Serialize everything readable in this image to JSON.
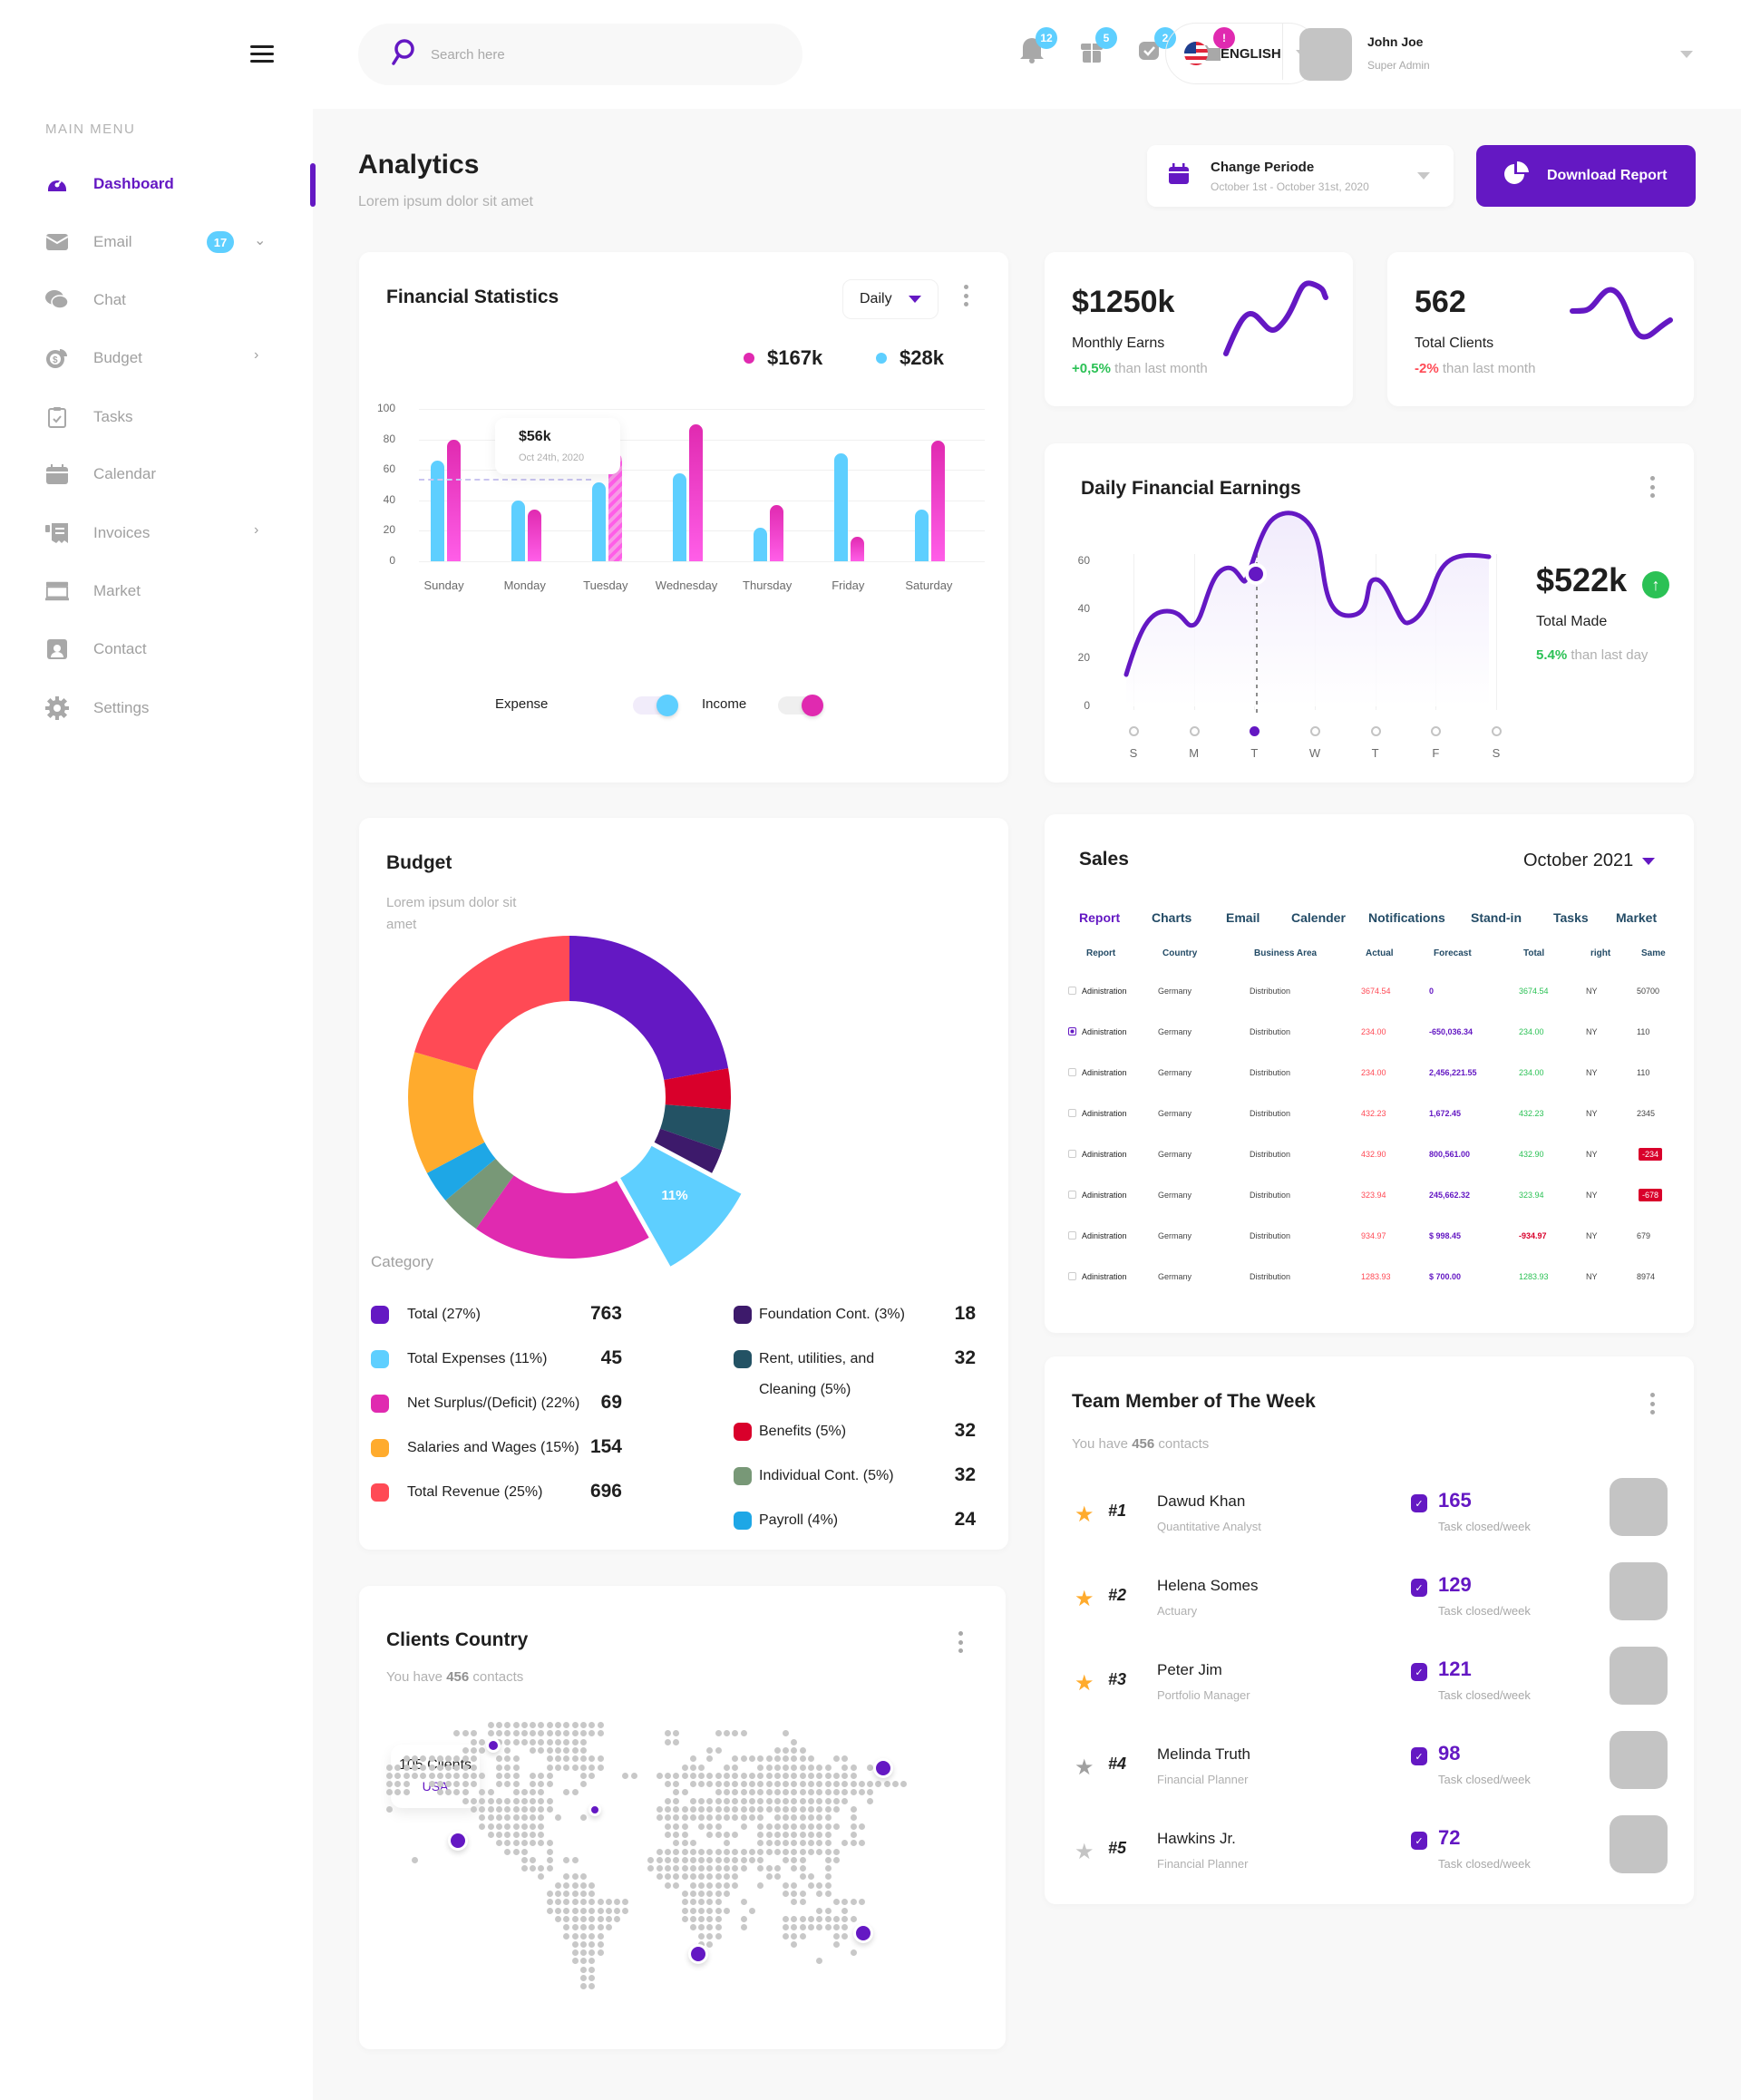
{
  "sidebar": {
    "menu_title": "MAIN MENU",
    "items": [
      {
        "label": "Dashboard",
        "icon": "dashboard-icon",
        "active": true
      },
      {
        "label": "Email",
        "icon": "envelope-icon",
        "badge": "17",
        "chevron": "down"
      },
      {
        "label": "Chat",
        "icon": "chat-icon"
      },
      {
        "label": "Budget",
        "icon": "budget-icon",
        "chevron": "right"
      },
      {
        "label": "Tasks",
        "icon": "clipboard-icon"
      },
      {
        "label": "Calendar",
        "icon": "calendar-icon"
      },
      {
        "label": "Invoices",
        "icon": "receipt-icon",
        "chevron": "right"
      },
      {
        "label": "Market",
        "icon": "store-icon"
      },
      {
        "label": "Contact",
        "icon": "contact-icon"
      },
      {
        "label": "Settings",
        "icon": "gear-icon"
      }
    ]
  },
  "header": {
    "search_placeholder": "Search here",
    "notifications": [
      {
        "icon": "bell-icon",
        "badge": "12",
        "color": "#5ecfff"
      },
      {
        "icon": "gift-icon",
        "badge": "5",
        "color": "#5ecfff"
      },
      {
        "icon": "chat-check-icon",
        "badge": "2",
        "color": "#5ecfff"
      },
      {
        "icon": "folder-icon",
        "badge": "!",
        "color": "#e02ab0"
      }
    ],
    "language": "ENGLISH",
    "user": {
      "name": "John Joe",
      "role": "Super Admin"
    }
  },
  "page": {
    "title": "Analytics",
    "subtitle": "Lorem ipsum  dolor sit amet",
    "period": {
      "label": "Change Periode",
      "range": "October 1st - October 31st, 2020"
    },
    "download_label": "Download Report"
  },
  "financial_statistics": {
    "title": "Financial Statistics",
    "filter": "Daily",
    "totals": [
      {
        "value": "$167k",
        "color": "#e02ab0"
      },
      {
        "value": "$28k",
        "color": "#5ecfff"
      }
    ],
    "tooltip": {
      "value": "$56k",
      "date": "Oct 24th, 2020"
    },
    "toggles": [
      {
        "label": "Expense"
      },
      {
        "label": "Income"
      }
    ]
  },
  "monthly_earns": {
    "value": "$1250k",
    "label": "Monthly Earns",
    "change": "+0,5%",
    "change_suffix": " than last month"
  },
  "total_clients": {
    "value": "562",
    "label": "Total Clients",
    "change": "-2%",
    "change_suffix": " than last month"
  },
  "daily_earnings": {
    "title": "Daily Financial Earnings",
    "total": "$522k",
    "total_label": "Total Made",
    "change": "5.4%",
    "change_suffix": " than last day"
  },
  "budget": {
    "title": "Budget",
    "subtitle_line1": "Lorem ipsum dolor sit",
    "subtitle_line2": "amet",
    "highlight_label": "11%",
    "category_title": "Category",
    "categories_left": [
      {
        "label": "Total (27%)",
        "value": "763",
        "color": "#6418c3"
      },
      {
        "label": "Total Expenses (11%)",
        "value": "45",
        "color": "#5ecfff"
      },
      {
        "label": "Net Surplus/(Deficit) (22%)",
        "value": "69",
        "color": "#e02ab0"
      },
      {
        "label": "Salaries and Wages (15%)",
        "value": "154",
        "color": "#ffab2d"
      },
      {
        "label": "Total Revenue (25%)",
        "value": "696",
        "color": "#ff4a55"
      }
    ],
    "categories_right": [
      {
        "label": "Foundation Cont. (3%)",
        "value": "18",
        "color": "#3d1a6b"
      },
      {
        "label": "Rent, utilities, and",
        "label2": "Cleaning (5%)",
        "value": "32",
        "color": "#235264"
      },
      {
        "label": "Benefits (5%)",
        "value": "32",
        "color": "#d9002b"
      },
      {
        "label": "Individual Cont. (5%)",
        "value": "32",
        "color": "#789877"
      },
      {
        "label": "Payroll (4%)",
        "value": "24",
        "color": "#1ea7e6"
      }
    ]
  },
  "sales": {
    "title": "Sales",
    "month": "October 2021",
    "tabs": [
      "Report",
      "Charts",
      "Email",
      "Calender",
      "Notifications",
      "Stand-in",
      "Tasks",
      "Market"
    ],
    "columns": [
      "Report",
      "Country",
      "Business Area",
      "Actual",
      "Forecast",
      "Total",
      "right",
      "Same"
    ],
    "rows": [
      {
        "checked": false,
        "report": "Adinistration",
        "country": "Germany",
        "area": "Distribution",
        "actual": "3674.54",
        "forecast": "0",
        "total": "3674.54",
        "right": "NY",
        "same": "50700"
      },
      {
        "checked": true,
        "report": "Adinistration",
        "country": "Germany",
        "area": "Distribution",
        "actual": "234.00",
        "forecast": "-650,036.34",
        "total": "234.00",
        "right": "NY",
        "same": "110"
      },
      {
        "checked": false,
        "report": "Adinistration",
        "country": "Germany",
        "area": "Distribution",
        "actual": "234.00",
        "forecast": "2,456,221.55",
        "total": "234.00",
        "right": "NY",
        "same": "110"
      },
      {
        "checked": false,
        "report": "Adinistration",
        "country": "Germany",
        "area": "Distribution",
        "actual": "432.23",
        "forecast": "1,672.45",
        "total": "432.23",
        "right": "NY",
        "same": "2345"
      },
      {
        "checked": false,
        "report": "Adinistration",
        "country": "Germany",
        "area": "Distribution",
        "actual": "432.90",
        "forecast": "800,561.00",
        "total": "432.90",
        "right": "NY",
        "same": "-234",
        "same_badge": true
      },
      {
        "checked": false,
        "report": "Adinistration",
        "country": "Germany",
        "area": "Distribution",
        "actual": "323.94",
        "forecast": "245,662.32",
        "total": "323.94",
        "right": "NY",
        "same": "-678",
        "same_badge": true
      },
      {
        "checked": false,
        "report": "Adinistration",
        "country": "Germany",
        "area": "Distribution",
        "actual": "934.97",
        "forecast": "$ 998.45",
        "total": "-934.97",
        "total_negative": true,
        "right": "NY",
        "same": "679"
      },
      {
        "checked": false,
        "report": "Adinistration",
        "country": "Germany",
        "area": "Distribution",
        "actual": "1283.93",
        "forecast": "$ 700.00",
        "total": "1283.93",
        "right": "NY",
        "same": "8974"
      }
    ]
  },
  "team": {
    "title": "Team Member of The Week",
    "subtitle_prefix": "You have ",
    "subtitle_count": "456",
    "subtitle_suffix": " contacts",
    "task_label": "Task closed/week",
    "members": [
      {
        "rank": "#1",
        "name": "Dawud Khan",
        "role": "Quantitative Analyst",
        "tasks": "165",
        "star_color": "#ffab2d"
      },
      {
        "rank": "#2",
        "name": "Helena Somes",
        "role": "Actuary",
        "tasks": "129",
        "star_color": "#ffab2d"
      },
      {
        "rank": "#3",
        "name": "Peter Jim",
        "role": "Portfolio Manager",
        "tasks": "121",
        "star_color": "#ffab2d"
      },
      {
        "rank": "#4",
        "name": "Melinda Truth",
        "role": "Financial Planner",
        "tasks": "98",
        "star_color": "#a0a0a0"
      },
      {
        "rank": "#5",
        "name": "Hawkins Jr.",
        "role": "Financial Planner",
        "tasks": "72",
        "star_color": "#c4c4c4"
      }
    ]
  },
  "clients_country": {
    "title": "Clients Country",
    "subtitle_prefix": "You have ",
    "subtitle_count": "456",
    "subtitle_suffix": " contacts",
    "tooltip": {
      "count": "105 Clients",
      "country": "USA"
    }
  },
  "colors": {
    "accent": "#6418c3",
    "cyan": "#5ecfff",
    "magenta": "#e02ab0",
    "green": "#2bc155",
    "red": "#ff4a55"
  },
  "chart_data": [
    {
      "type": "bar",
      "title": "Financial Statistics",
      "categories": [
        "Sunday",
        "Monday",
        "Tuesday",
        "Wednesday",
        "Thursday",
        "Friday",
        "Saturday"
      ],
      "series": [
        {
          "name": "Expense",
          "color": "#5ecfff",
          "values": [
            66,
            40,
            52,
            58,
            22,
            71,
            34
          ]
        },
        {
          "name": "Income",
          "color": "#e02ab0",
          "values": [
            80,
            34,
            71,
            90,
            37,
            16,
            79
          ]
        }
      ],
      "yticks": [
        0,
        20,
        40,
        60,
        80,
        100
      ],
      "ylim": [
        0,
        100
      ],
      "grid": true,
      "annotation": {
        "label": "$56k",
        "sub": "Oct 24th, 2020",
        "category": "Tuesday"
      }
    },
    {
      "type": "line",
      "title": "Daily Financial Earnings",
      "categories": [
        "S",
        "M",
        "T",
        "W",
        "T",
        "F",
        "S"
      ],
      "values": [
        10,
        24,
        40,
        64,
        32,
        30,
        57
      ],
      "yticks": [
        0,
        20,
        40,
        60
      ],
      "ylim": [
        0,
        65
      ],
      "highlight_index": 2
    },
    {
      "type": "pie",
      "title": "Budget",
      "labels": [
        "Total",
        "Benefits",
        "Rent, utilities, and Cleaning",
        "Foundation Cont.",
        "Total Expenses",
        "Net Surplus/(Deficit)",
        "Individual Cont.",
        "Payroll",
        "Salaries and Wages",
        "Total Revenue"
      ],
      "values": [
        27,
        5,
        5,
        3,
        11,
        22,
        5,
        4,
        15,
        25
      ],
      "colors": [
        "#6418c3",
        "#d9002b",
        "#235264",
        "#3d1a6b",
        "#5ecfff",
        "#e02ab0",
        "#789877",
        "#1ea7e6",
        "#ffab2d",
        "#ff4a55"
      ]
    },
    {
      "type": "line",
      "title": "Monthly Earns sparkline",
      "values": [
        5,
        35,
        22,
        40,
        60
      ]
    },
    {
      "type": "line",
      "title": "Total Clients sparkline",
      "values": [
        30,
        32,
        55,
        30,
        10,
        20
      ]
    }
  ]
}
